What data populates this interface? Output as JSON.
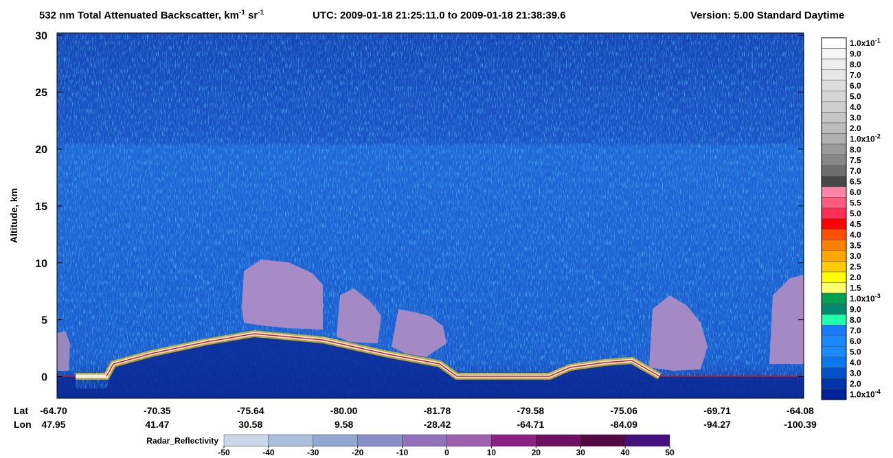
{
  "chart_data": {
    "type": "curtain",
    "title": {
      "main": "532 nm Total Attenuated Backscatter, km",
      "sup1": "-1",
      "mid": " sr",
      "sup2": "-1",
      "utc": "UTC:  2009-01-18 21:25:11.0  to  2009-01-18 21:38:39.6",
      "version": "Version: 5.00  Standard  Daytime"
    },
    "ylabel": "Altitude, km",
    "ylim": [
      -1.9,
      30.2
    ],
    "yticks": [
      0,
      5,
      10,
      15,
      20,
      25,
      30
    ],
    "lat_label": "Lat",
    "lon_label": "Lon",
    "lat": [
      "-64.70",
      "-70.35",
      "-75.64",
      "-80.00",
      "-81.78",
      "-79.58",
      "-75.06",
      "-69.71",
      "-64.08"
    ],
    "lon": [
      "47.95",
      "41.47",
      "30.58",
      "9.58",
      "-28.42",
      "-64.71",
      "-84.09",
      "-94.27",
      "-100.39"
    ],
    "colorbar": {
      "labels": [
        {
          "text": "1.0x10",
          "sup": "-1"
        },
        "9.0",
        "8.0",
        "7.0",
        "6.0",
        "5.0",
        "4.0",
        "3.0",
        "2.0",
        {
          "text": "1.0x10",
          "sup": "-2"
        },
        "8.0",
        "7.5",
        "7.0",
        "6.5",
        "6.0",
        "5.5",
        "5.0",
        "4.5",
        "4.0",
        "3.5",
        "3.0",
        "2.5",
        "2.0",
        "1.5",
        {
          "text": "1.0x10",
          "sup": "-3"
        },
        "9.0",
        "8.0",
        "7.0",
        "6.0",
        "5.0",
        "4.0",
        "3.0",
        "2.0",
        {
          "text": "1.0x10",
          "sup": "-4"
        }
      ],
      "colors": [
        "#ffffff",
        "#f6f6f6",
        "#eeeeee",
        "#e6e6e6",
        "#dedede",
        "#d6d6d6",
        "#cecece",
        "#c6c6c6",
        "#bdbdbd",
        "#b0b0b0",
        "#9a9a9a",
        "#888888",
        "#6e6e6e",
        "#474747",
        "#ff85a8",
        "#ff5a80",
        "#ff2e55",
        "#ff0000",
        "#ff5000",
        "#ff7f00",
        "#ffa800",
        "#ffcc00",
        "#ffff00",
        "#ffff70",
        "#00a050",
        "#008a70",
        "#20ffaa",
        "#1a7aff",
        "#1a86ff",
        "#1a8cff",
        "#0a78f0",
        "#0050c8",
        "#0034a8",
        "#00229a"
      ]
    },
    "radar": {
      "label": "Radar_Reflectivity",
      "ticks": [
        -50,
        -40,
        -30,
        -20,
        -10,
        0,
        10,
        20,
        30,
        40,
        50
      ],
      "colors": [
        "#cad9ea",
        "#a9bfdc",
        "#91a8d1",
        "#8b8fc8",
        "#9172b9",
        "#9d5fae",
        "#8a2082",
        "#6e1060",
        "#520a44",
        "#44107e"
      ]
    }
  }
}
